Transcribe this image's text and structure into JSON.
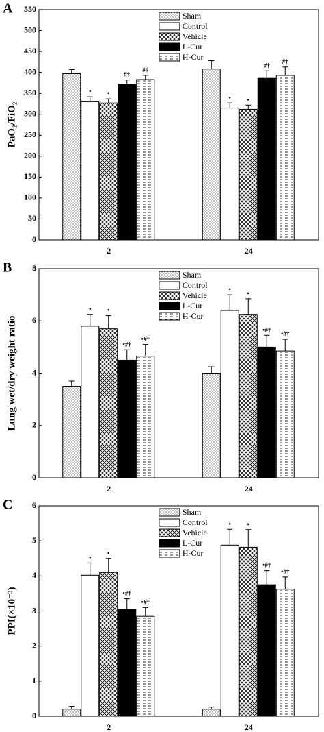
{
  "chart_data": [
    {
      "type": "bar",
      "panel": "A",
      "ylabel": "PaO₂/FiO₂",
      "categories": [
        "2",
        "24"
      ],
      "ylim": [
        0,
        550
      ],
      "yticks": [
        0,
        50,
        100,
        150,
        200,
        250,
        300,
        350,
        400,
        450,
        500,
        550
      ],
      "legend": "upper center",
      "series": [
        {
          "name": "Sham",
          "pattern": "dots",
          "values": [
            397,
            408
          ],
          "errors": [
            10,
            20
          ]
        },
        {
          "name": "Control",
          "pattern": "none",
          "values": [
            330,
            315
          ],
          "errors": [
            12,
            12
          ],
          "annotation": "•"
        },
        {
          "name": "Vehicle",
          "pattern": "crosshatch",
          "values": [
            327,
            312
          ],
          "errors": [
            10,
            10
          ],
          "annotation": "•"
        },
        {
          "name": "L-Cur",
          "pattern": "solid",
          "values": [
            372,
            386
          ],
          "errors": [
            10,
            18
          ],
          "annotation": "#†"
        },
        {
          "name": "H-Cur",
          "pattern": "dashes",
          "values": [
            383,
            393
          ],
          "errors": [
            10,
            20
          ],
          "annotation": "#†"
        }
      ]
    },
    {
      "type": "bar",
      "panel": "B",
      "ylabel": "Lung wet/dry weight ratio",
      "categories": [
        "2",
        "24"
      ],
      "ylim": [
        0,
        8
      ],
      "yticks": [
        0,
        2,
        4,
        6,
        8
      ],
      "legend": "upper center",
      "series": [
        {
          "name": "Sham",
          "pattern": "dots",
          "values": [
            3.5,
            4.0
          ],
          "errors": [
            0.2,
            0.25
          ]
        },
        {
          "name": "Control",
          "pattern": "none",
          "values": [
            5.8,
            6.4
          ],
          "errors": [
            0.45,
            0.6
          ],
          "annotation": "•"
        },
        {
          "name": "Vehicle",
          "pattern": "crosshatch",
          "values": [
            5.7,
            6.25
          ],
          "errors": [
            0.5,
            0.6
          ],
          "annotation": "•"
        },
        {
          "name": "L-Cur",
          "pattern": "solid",
          "values": [
            4.5,
            5.0
          ],
          "errors": [
            0.4,
            0.45
          ],
          "annotation": "•#†"
        },
        {
          "name": "H-Cur",
          "pattern": "dashes",
          "values": [
            4.65,
            4.85
          ],
          "errors": [
            0.45,
            0.45
          ],
          "annotation": "•#†"
        }
      ]
    },
    {
      "type": "bar",
      "panel": "C",
      "ylabel": "PPI(×10⁻³)",
      "categories": [
        "2",
        "24"
      ],
      "ylim": [
        0,
        6
      ],
      "yticks": [
        0,
        1,
        2,
        3,
        4,
        5,
        6
      ],
      "legend": "upper center",
      "series": [
        {
          "name": "Sham",
          "pattern": "dots",
          "values": [
            0.2,
            0.2
          ],
          "errors": [
            0.08,
            0.06
          ]
        },
        {
          "name": "Control",
          "pattern": "none",
          "values": [
            4.02,
            4.88
          ],
          "errors": [
            0.35,
            0.45
          ],
          "annotation": "•"
        },
        {
          "name": "Vehicle",
          "pattern": "crosshatch",
          "values": [
            4.1,
            4.82
          ],
          "errors": [
            0.4,
            0.5
          ],
          "annotation": "•"
        },
        {
          "name": "L-Cur",
          "pattern": "solid",
          "values": [
            3.05,
            3.75
          ],
          "errors": [
            0.3,
            0.4
          ],
          "annotation": "•#†"
        },
        {
          "name": "H-Cur",
          "pattern": "dashes",
          "values": [
            2.85,
            3.62
          ],
          "errors": [
            0.25,
            0.35
          ],
          "annotation": "•#†"
        }
      ]
    }
  ]
}
